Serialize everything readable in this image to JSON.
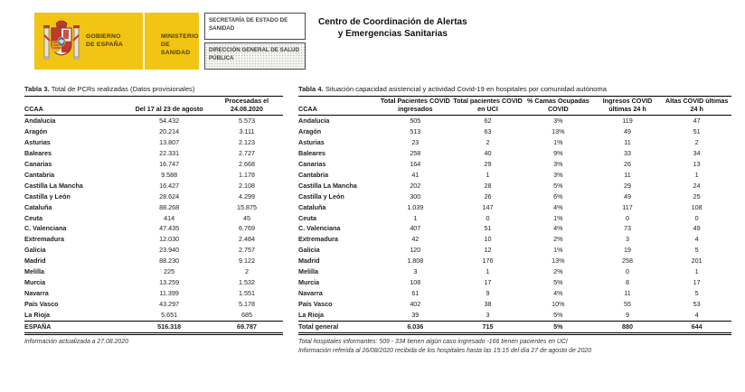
{
  "header": {
    "brand_yellow": "#F2C413",
    "gobierno": "GOBIERNO\nDE ESPAÑA",
    "ministerio": "MINISTERIO\nDE SANIDAD",
    "secretaria": "SECRETARÍA DE ESTADO DE SANIDAD",
    "direccion": "DIRECCIÓN GENERAL DE SALUD PÚBLICA",
    "centro": "Centro de Coordinación de Alertas\ny Emergencias Sanitarias"
  },
  "tables": {
    "table3": {
      "title_bold": "Tabla 3.",
      "title_rest": " Total de PCRs realizadas (Datos provisionales)",
      "columns": [
        "CCAA",
        "Del 17 al 23 de agosto",
        "Procesadas el 24.08.2020"
      ],
      "rows": [
        [
          "Andalucía",
          "54.432",
          "5.573"
        ],
        [
          "Aragón",
          "20.214",
          "3.111"
        ],
        [
          "Asturias",
          "13.807",
          "2.123"
        ],
        [
          "Baleares",
          "22.331",
          "2.727"
        ],
        [
          "Canarias",
          "16.747",
          "2.668"
        ],
        [
          "Cantabria",
          "9.588",
          "1.178"
        ],
        [
          "Castilla La Mancha",
          "16.427",
          "2.108"
        ],
        [
          "Castilla y León",
          "28.624",
          "4.299"
        ],
        [
          "Cataluña",
          "88.268",
          "15.875"
        ],
        [
          "Ceuta",
          "414",
          "45"
        ],
        [
          "C. Valenciana",
          "47.435",
          "6.769"
        ],
        [
          "Extremadura",
          "12.030",
          "2.484"
        ],
        [
          "Galicia",
          "23.940",
          "2.757"
        ],
        [
          "Madrid",
          "88.230",
          "9.122"
        ],
        [
          "Melilla",
          "225",
          "2"
        ],
        [
          "Murcia",
          "13.259",
          "1.532"
        ],
        [
          "Navarra",
          "11.399",
          "1.551"
        ],
        [
          "País Vasco",
          "43.297",
          "5.178"
        ],
        [
          "La Rioja",
          "5.651",
          "685"
        ]
      ],
      "total_rows": [
        [
          "ESPAÑA",
          "516.318",
          "69.787"
        ]
      ],
      "footnote": "Información actualizada a 27.08.2020"
    },
    "table4": {
      "title_bold": "Tabla 4.",
      "title_rest": " Situación capacidad asistencial y actividad Covid-19 en  hospitales por comunidad autónoma",
      "columns": [
        "CCAA",
        "Total Pacientes COVID ingresados",
        "Total pacientes COVID en UCI",
        "% Camas Ocupadas COVID",
        "Ingresos COVID últimas 24 h",
        "Altas COVID últimas 24 h"
      ],
      "rows": [
        [
          "Andalucía",
          "505",
          "62",
          "3%",
          "119",
          "47"
        ],
        [
          "Aragón",
          "513",
          "63",
          "13%",
          "49",
          "51"
        ],
        [
          "Asturias",
          "23",
          "2",
          "1%",
          "11",
          "2"
        ],
        [
          "Baleares",
          "258",
          "40",
          "9%",
          "33",
          "34"
        ],
        [
          "Canarias",
          "164",
          "29",
          "3%",
          "26",
          "13"
        ],
        [
          "Cantabria",
          "41",
          "1",
          "3%",
          "11",
          "1"
        ],
        [
          "Castilla La Mancha",
          "202",
          "28",
          "5%",
          "29",
          "24"
        ],
        [
          "Castilla y León",
          "300",
          "26",
          "6%",
          "49",
          "25"
        ],
        [
          "Cataluña",
          "1.039",
          "147",
          "4%",
          "117",
          "108"
        ],
        [
          "Ceuta",
          "1",
          "0",
          "1%",
          "0",
          "0"
        ],
        [
          "C. Valenciana",
          "407",
          "51",
          "4%",
          "73",
          "49"
        ],
        [
          "Extremadura",
          "42",
          "10",
          "2%",
          "3",
          "4"
        ],
        [
          "Galicia",
          "120",
          "12",
          "1%",
          "19",
          "5"
        ],
        [
          "Madrid",
          "1.808",
          "176",
          "13%",
          "258",
          "201"
        ],
        [
          "Melilla",
          "3",
          "1",
          "2%",
          "0",
          "1"
        ],
        [
          "Murcia",
          "108",
          "17",
          "5%",
          "8",
          "17"
        ],
        [
          "Navarra",
          "61",
          "9",
          "4%",
          "11",
          "5"
        ],
        [
          "País Vasco",
          "402",
          "38",
          "10%",
          "55",
          "53"
        ],
        [
          "La Rioja",
          "39",
          "3",
          "5%",
          "9",
          "4"
        ]
      ],
      "total_rows": [
        [
          "Total general",
          "6.036",
          "715",
          "5%",
          "880",
          "644"
        ]
      ],
      "footnotes": [
        "Total hospitales informantes: 509 - 334 tienen algún caso ingresado -166 tienen pacientes en UCI",
        "Información referida al 26/08/2020 recibida de los hospitales hasta las 15:15 del día 27 de agosto de 2020"
      ]
    }
  }
}
